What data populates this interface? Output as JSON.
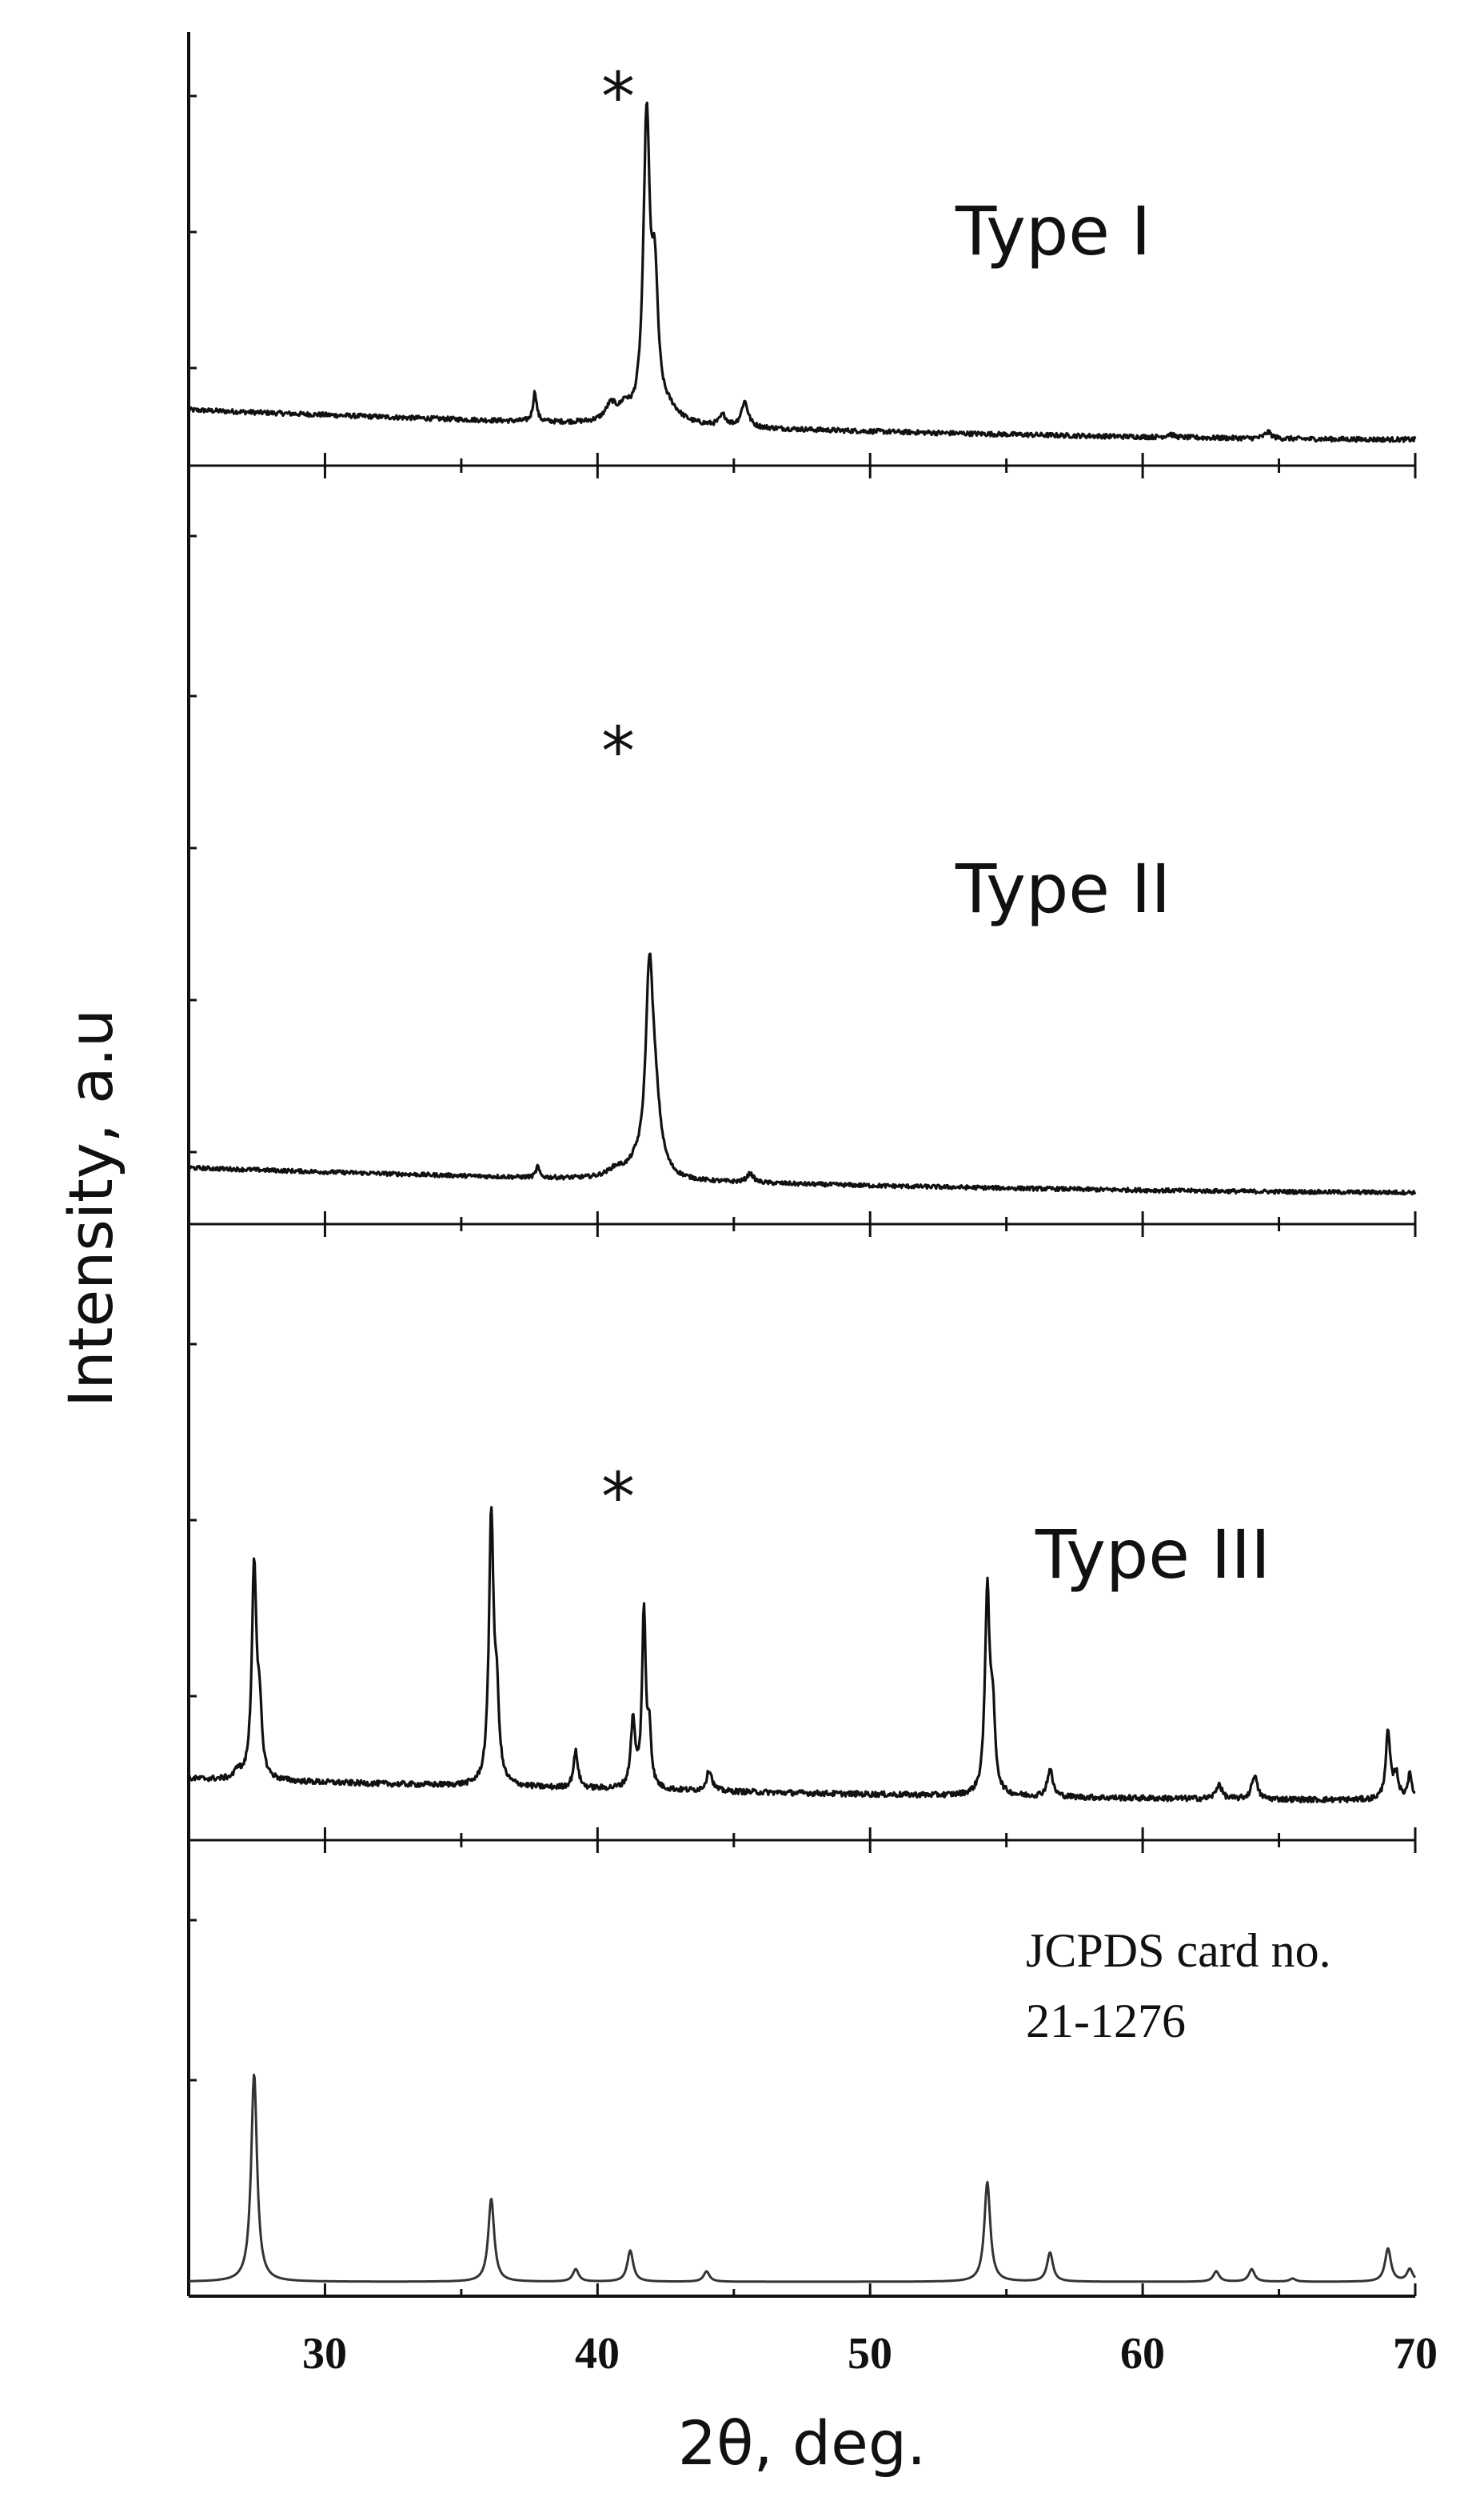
{
  "chart_data": {
    "type": "line",
    "layout": "stacked-panels",
    "title": "",
    "xlabel": "2θ, deg.",
    "ylabel": "Intensity, a.u",
    "xlim": [
      25,
      70
    ],
    "xticks": [
      30,
      40,
      50,
      60,
      70
    ],
    "grid": false,
    "legend": "none",
    "colors": {
      "line": "#111111",
      "reference_line": "#333333",
      "axis": "#111111"
    },
    "panels": [
      {
        "name": "Type I",
        "label": "Type I",
        "marker_label": "*",
        "marker_x": 41.6,
        "ylim": [
          0,
          100
        ],
        "baseline_start": 18,
        "baseline_end": 4,
        "noise": 1.1,
        "peaks": [
          {
            "x": 37.7,
            "h": 14,
            "w": 0.08
          },
          {
            "x": 40.5,
            "h": 8,
            "w": 0.25
          },
          {
            "x": 41.0,
            "h": 6,
            "w": 0.2
          },
          {
            "x": 41.8,
            "h": 140,
            "w": 0.14
          },
          {
            "x": 42.1,
            "h": 60,
            "w": 0.14
          },
          {
            "x": 42.6,
            "h": 6,
            "w": 0.5
          },
          {
            "x": 44.6,
            "h": 5,
            "w": 0.15
          },
          {
            "x": 45.4,
            "h": 12,
            "w": 0.15
          },
          {
            "x": 61.0,
            "h": 1.5,
            "w": 0.15
          },
          {
            "x": 64.6,
            "h": 3,
            "w": 0.15
          }
        ]
      },
      {
        "name": "Type II",
        "label": "Type II",
        "marker_label": "*",
        "marker_x": 40.9,
        "ylim": [
          0,
          100
        ],
        "baseline_start": 18,
        "baseline_end": 7,
        "noise": 0.9,
        "peaks": [
          {
            "x": 37.8,
            "h": 5,
            "w": 0.07
          },
          {
            "x": 40.7,
            "h": 4,
            "w": 0.4
          },
          {
            "x": 41.4,
            "h": 4,
            "w": 0.3
          },
          {
            "x": 41.9,
            "h": 82,
            "w": 0.16
          },
          {
            "x": 42.1,
            "h": 30,
            "w": 0.25
          },
          {
            "x": 45.6,
            "h": 4,
            "w": 0.15
          }
        ]
      },
      {
        "name": "Type III",
        "label": "Type III",
        "marker_label": "*",
        "marker_x": 40.9,
        "ylim": [
          0,
          100
        ],
        "baseline_start": 17,
        "baseline_end": 10,
        "noise": 0.9,
        "peaks": [
          {
            "x": 26.8,
            "h": 3,
            "w": 0.1
          },
          {
            "x": 27.4,
            "h": 70,
            "w": 0.1
          },
          {
            "x": 27.6,
            "h": 20,
            "w": 0.1
          },
          {
            "x": 36.1,
            "h": 88,
            "w": 0.1
          },
          {
            "x": 36.3,
            "h": 25,
            "w": 0.1
          },
          {
            "x": 39.2,
            "h": 12,
            "w": 0.1
          },
          {
            "x": 41.3,
            "h": 22,
            "w": 0.1
          },
          {
            "x": 41.7,
            "h": 58,
            "w": 0.08
          },
          {
            "x": 41.9,
            "h": 18,
            "w": 0.08
          },
          {
            "x": 44.1,
            "h": 7,
            "w": 0.12
          },
          {
            "x": 54.3,
            "h": 67,
            "w": 0.1
          },
          {
            "x": 54.5,
            "h": 25,
            "w": 0.1
          },
          {
            "x": 56.6,
            "h": 9,
            "w": 0.12
          },
          {
            "x": 62.8,
            "h": 5,
            "w": 0.12
          },
          {
            "x": 64.1,
            "h": 8,
            "w": 0.12
          },
          {
            "x": 69.0,
            "h": 22,
            "w": 0.1
          },
          {
            "x": 69.3,
            "h": 8,
            "w": 0.1
          },
          {
            "x": 69.8,
            "h": 8,
            "w": 0.1
          }
        ]
      },
      {
        "name": "JCPDS card no. 21-1276",
        "label_lines": [
          "JCPDS card no.",
          "21-1276"
        ],
        "ylim": [
          0,
          100
        ],
        "baseline_start": 0,
        "baseline_end": 0,
        "noise": 0,
        "peaks": [
          {
            "x": 27.4,
            "h": 100,
            "w": 0.13
          },
          {
            "x": 36.1,
            "h": 40,
            "w": 0.13
          },
          {
            "x": 39.2,
            "h": 6,
            "w": 0.13
          },
          {
            "x": 41.2,
            "h": 15,
            "w": 0.13
          },
          {
            "x": 44.0,
            "h": 5,
            "w": 0.13
          },
          {
            "x": 54.3,
            "h": 48,
            "w": 0.13
          },
          {
            "x": 56.6,
            "h": 14,
            "w": 0.13
          },
          {
            "x": 62.7,
            "h": 5,
            "w": 0.13
          },
          {
            "x": 64.0,
            "h": 6,
            "w": 0.13
          },
          {
            "x": 65.5,
            "h": 1.5,
            "w": 0.13
          },
          {
            "x": 69.0,
            "h": 16,
            "w": 0.13
          },
          {
            "x": 69.8,
            "h": 6,
            "w": 0.13
          }
        ]
      }
    ]
  }
}
